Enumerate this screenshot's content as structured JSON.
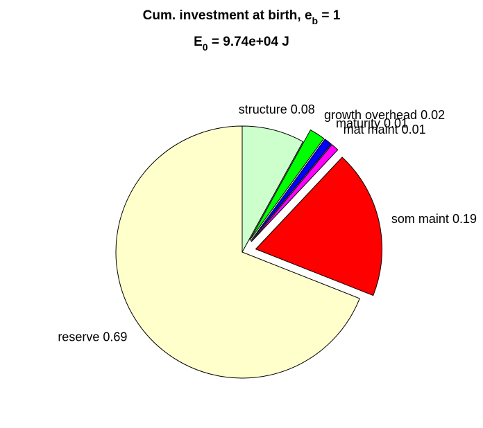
{
  "chart_data": {
    "type": "pie",
    "title": [
      "Cum. investment at birth, e",
      "b",
      " = 1"
    ],
    "subtitle": [
      "E",
      "0",
      " = 9.74e+04 J"
    ],
    "categories": [
      "structure",
      "growth overhead",
      "maturity",
      "mat maint",
      "som maint",
      "reserve"
    ],
    "values": [
      0.08,
      0.02,
      0.01,
      0.01,
      0.19,
      0.69
    ],
    "colors": [
      "#ccffcc",
      "#00ff00",
      "#0000ff",
      "#ff00ff",
      "#ff0000",
      "#ffffcc"
    ],
    "explode": [
      false,
      true,
      true,
      true,
      true,
      false
    ]
  }
}
